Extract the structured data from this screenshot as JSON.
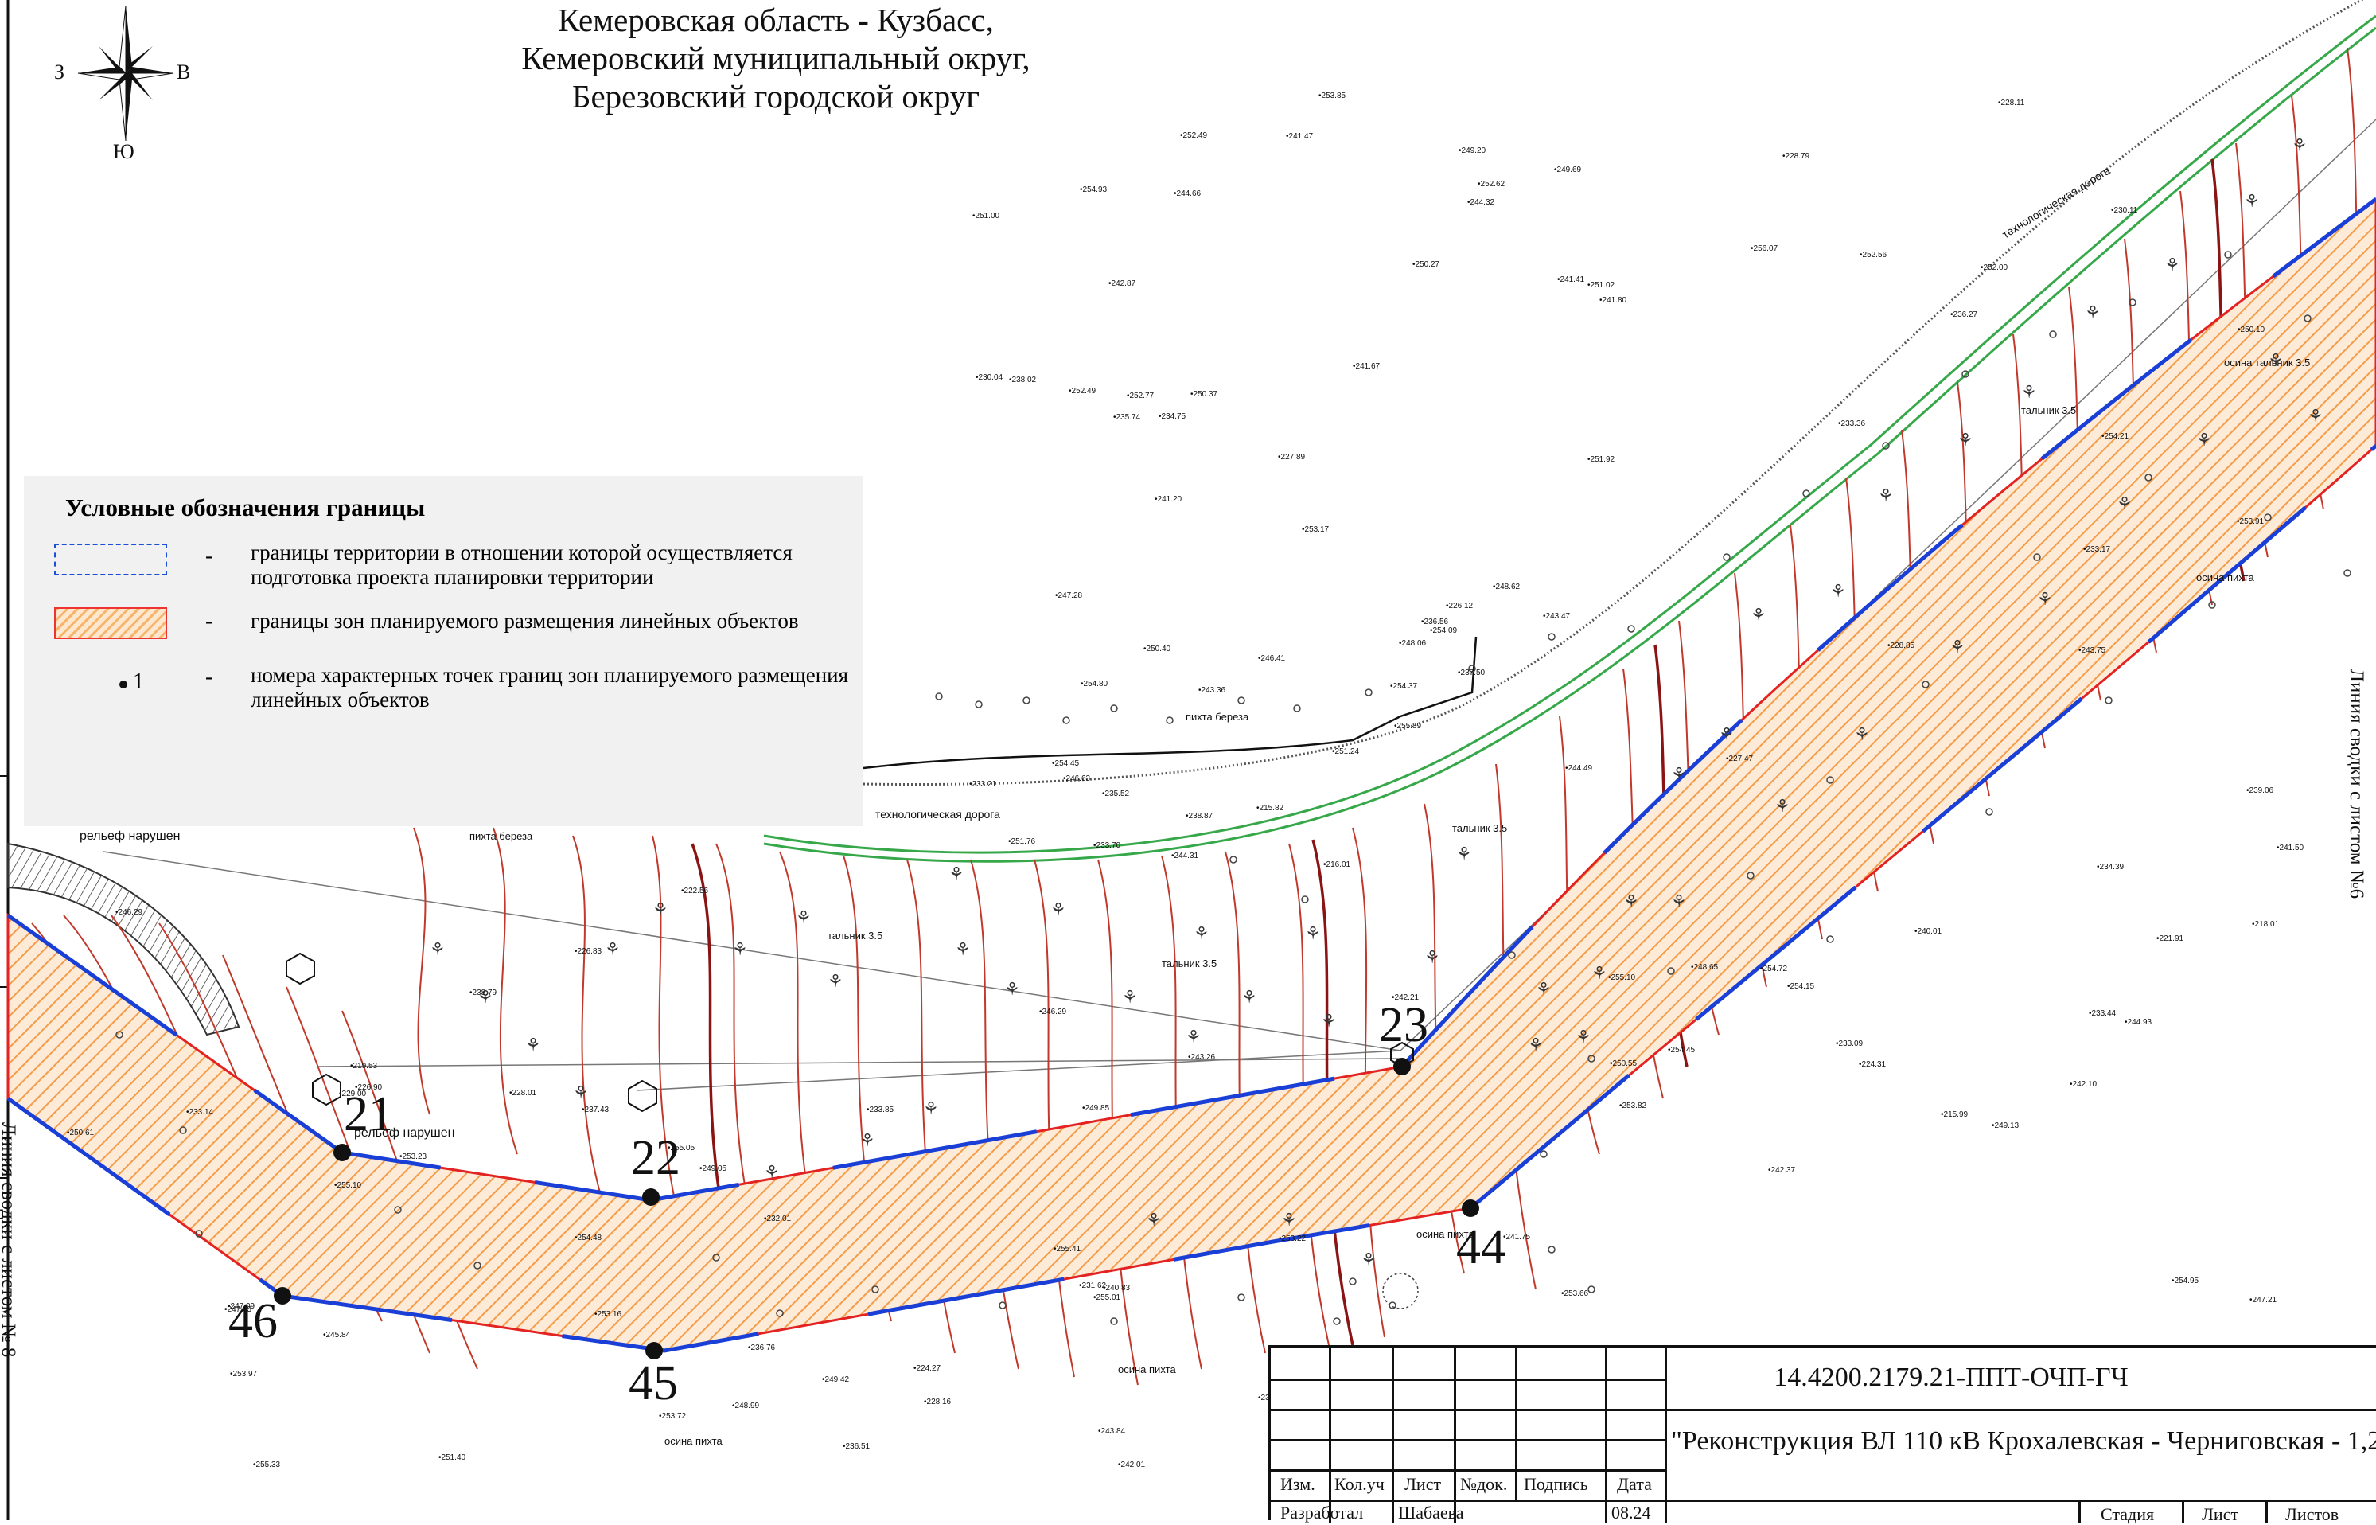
{
  "header": {
    "line1": "Кемеровская область - Кузбасс,",
    "line2": "Кемеровский муниципальный округ,",
    "line3": "Березовский городской округ"
  },
  "compass": {
    "west": "З",
    "east": "В",
    "south": "Ю"
  },
  "legend": {
    "title": "Условные обозначения границы",
    "items": [
      {
        "dash": "-",
        "text": "границы территории в отношении которой  осуществляется подготовка проекта планировки территории"
      },
      {
        "dash": "-",
        "text": "границы зон планируемого размещения линейных объектов"
      },
      {
        "number": "1",
        "dash": "-",
        "text": "номера характерных точек границ зон планируемого размещения линейных  объектов"
      }
    ]
  },
  "points": [
    "21",
    "22",
    "23",
    "44",
    "46",
    "45"
  ],
  "side_labels": {
    "left": "Линия сводки с листом № 8",
    "right": "Линия сводки с листом №6"
  },
  "map_labels": {
    "road1": "технологическая дорога",
    "road2": "технологическая дорога",
    "relief1": "рельеф  нарушен",
    "relief2": "рельеф  нарушен",
    "trees1": "пихта береза",
    "trees2": "пихта береза",
    "tal1": "тальник 3.5",
    "tal2": "тальник 3.5",
    "tal3": "тальник 3.5",
    "tal4": "тальник 3.5",
    "osina1": "осина пихта",
    "osina2": "осина пихта",
    "osina3": "осина пихта",
    "osina4": "осина пихта",
    "osina5": "осина тальник 3.5",
    "elevations": [
      "244.31",
      "246.63",
      "247.09",
      "248.06",
      "249.05",
      "249.69",
      "250.37",
      "251.02",
      "251.24",
      "250.10",
      "251.76",
      "251.92",
      "251.40",
      "252.49",
      "253.17",
      "253.23",
      "253.97",
      "253.16",
      "252.77",
      "254.09",
      "254.15",
      "254.93",
      "255.10",
      "253.91",
      "254.45",
      "255.41",
      "254.80",
      "256.07",
      "255.05",
      "254.95",
      "254.72",
      "253.85",
      "253.82",
      "253.72",
      "254.37",
      "255.33",
      "255.01",
      "255.89",
      "255.10",
      "254.21",
      "254.45",
      "253.66",
      "254.48",
      "253.22",
      "252.00",
      "252.49",
      "252.56",
      "252.62",
      "251.00",
      "250.40",
      "250.61",
      "249.85",
      "249.42",
      "248.65",
      "247.63",
      "246.29",
      "247.28",
      "246.41",
      "245.84",
      "244.49",
      "244.93",
      "243.84",
      "243.75",
      "243.26",
      "241.75",
      "241.50",
      "243.47",
      "242.37",
      "243.36",
      "242.10",
      "242.01",
      "241.41",
      "241.80",
      "239.06",
      "238.79",
      "237.43",
      "236.76",
      "236.56",
      "236.27",
      "234.39",
      "234.75",
      "233.21",
      "233.14",
      "233.70",
      "230.11",
      "230.04",
      "229.00",
      "228.11",
      "227.89",
      "227.47",
      "226.83",
      "228.16",
      "228.85",
      "226.90",
      "221.91",
      "224.31",
      "222.56",
      "219.53",
      "218.01",
      "216.01",
      "215.99",
      "215.82",
      "226.12",
      "224.27",
      "231.62",
      "233.17",
      "236.51",
      "240.01",
      "241.47",
      "242.87",
      "241.20",
      "241.67",
      "242.21",
      "244.66",
      "244.32",
      "246.29",
      "247.21",
      "249.13",
      "249.20",
      "248.62",
      "248.99",
      "250.27",
      "250.55",
      "238.87",
      "231.08",
      "232.01",
      "235.52",
      "233.44",
      "233.85",
      "235.74",
      "233.36",
      "237.50",
      "240.83",
      "238.02",
      "233.09",
      "228.01",
      "228.79"
    ]
  },
  "title_block": {
    "code": "14.4200.2179.21-ППТ-ОЧП-ГЧ",
    "project": "\"Реконструкция ВЛ 110 кВ Крохалевская - Черниговская - 1,2\"",
    "col_izm": "Изм.",
    "col_koluch": "Кол.уч",
    "col_list": "Лист",
    "col_ndok": "№док.",
    "col_podpis": "Подпись",
    "col_data": "Дата",
    "role": "Разработал",
    "author": "Шабаева",
    "date": "08.24",
    "stage": "Стадия",
    "sheet": "Лист",
    "sheets": "Листов"
  },
  "colors": {
    "contour": "#c0392b",
    "zone_border": "#e32222",
    "boundary": "#1a3fd6",
    "hatch": "#f39c4a",
    "road_green": "#36a84a"
  }
}
